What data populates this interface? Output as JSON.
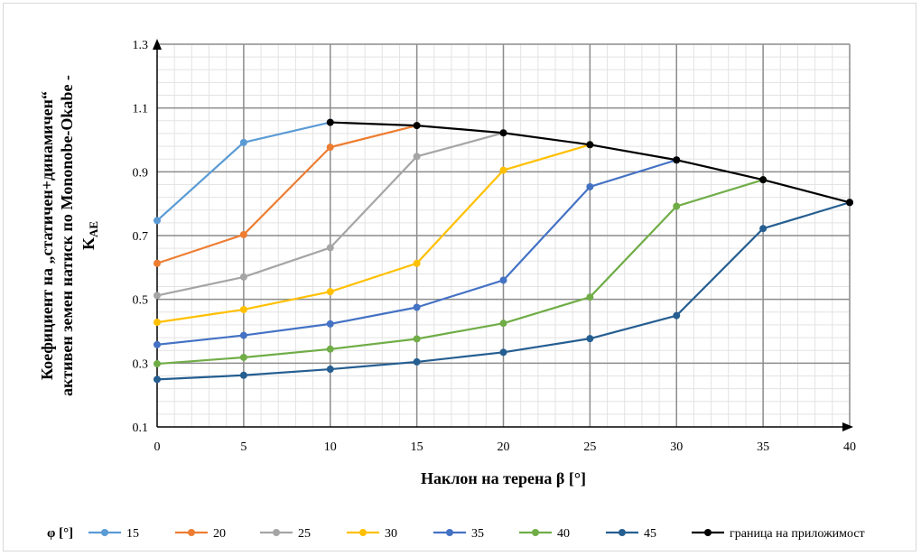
{
  "chart_data": {
    "type": "line",
    "xlabel": "Наклон на терена β [°]",
    "ylabel_lines": [
      "Коефициент на „статичен+динамичен“",
      "активен земен натиск по Mononobe-Okabe -",
      "K"
    ],
    "ylabel_subscript": "AE",
    "xlim": [
      0,
      40
    ],
    "ylim": [
      0.1,
      1.3
    ],
    "x_ticks": [
      0,
      5,
      10,
      15,
      20,
      25,
      30,
      35,
      40
    ],
    "y_ticks": [
      0.1,
      0.3,
      0.5,
      0.7,
      0.9,
      1.1,
      1.3
    ],
    "y_tick_labels": [
      "0.1",
      "0.3",
      "0.5",
      "0.7",
      "0.9",
      "1.1",
      "1.3"
    ],
    "grid": "major-and-minor",
    "legend_position": "bottom",
    "legend_title": "φ [°]",
    "series": [
      {
        "name": "15",
        "color": "#5b9bd5",
        "x": [
          0,
          5,
          10
        ],
        "y": [
          0.747,
          0.992,
          1.055
        ]
      },
      {
        "name": "20",
        "color": "#ed7d31",
        "x": [
          0,
          5,
          10,
          15
        ],
        "y": [
          0.613,
          0.703,
          0.977,
          1.045
        ]
      },
      {
        "name": "25",
        "color": "#a5a5a5",
        "x": [
          0,
          5,
          10,
          15,
          20
        ],
        "y": [
          0.512,
          0.57,
          0.662,
          0.948,
          1.022
        ]
      },
      {
        "name": "30",
        "color": "#ffc000",
        "x": [
          0,
          5,
          10,
          15,
          20,
          25
        ],
        "y": [
          0.428,
          0.468,
          0.524,
          0.613,
          0.905,
          0.985
        ]
      },
      {
        "name": "35",
        "color": "#4472c4",
        "x": [
          0,
          5,
          10,
          15,
          20,
          25,
          30
        ],
        "y": [
          0.358,
          0.387,
          0.423,
          0.475,
          0.56,
          0.853,
          0.937
        ]
      },
      {
        "name": "40",
        "color": "#70ad47",
        "x": [
          0,
          5,
          10,
          15,
          20,
          25,
          30,
          35
        ],
        "y": [
          0.298,
          0.318,
          0.344,
          0.376,
          0.425,
          0.507,
          0.792,
          0.875
        ]
      },
      {
        "name": "45",
        "color": "#255e91",
        "x": [
          0,
          5,
          10,
          15,
          20,
          25,
          30,
          35,
          40
        ],
        "y": [
          0.249,
          0.262,
          0.281,
          0.304,
          0.334,
          0.377,
          0.449,
          0.722,
          0.804
        ]
      },
      {
        "name": "граница на приложимост",
        "color": "#000000",
        "x": [
          10,
          15,
          20,
          25,
          30,
          35,
          40
        ],
        "y": [
          1.055,
          1.045,
          1.022,
          0.985,
          0.937,
          0.875,
          0.804
        ]
      }
    ]
  }
}
